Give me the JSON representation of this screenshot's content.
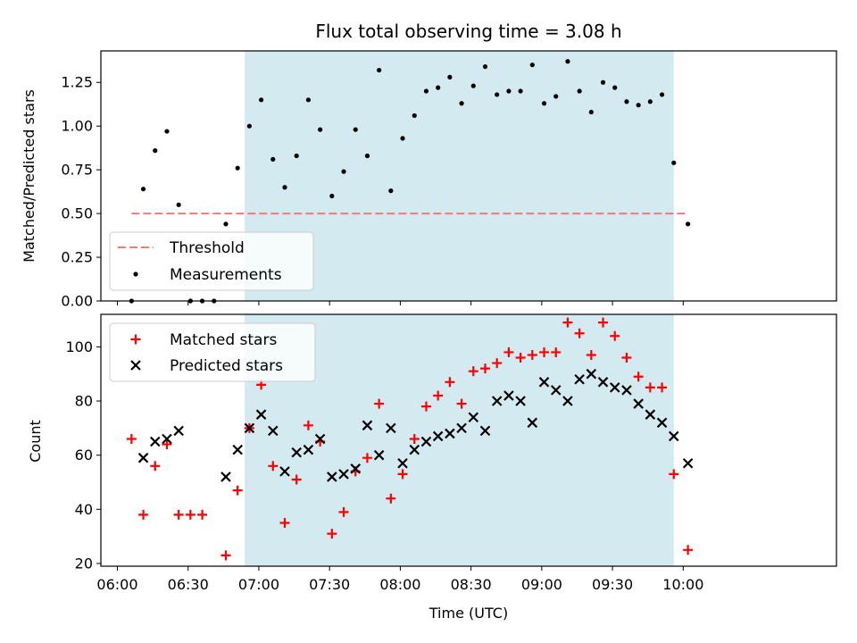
{
  "chart_data": [
    {
      "type": "scatter",
      "panel": "top",
      "title": "Flux total observing time = 3.08 h",
      "xlabel": "",
      "ylabel": "Matched/Predicted stars",
      "ylim": [
        0.0,
        1.43
      ],
      "yticks": [
        0.0,
        0.25,
        0.5,
        0.75,
        1.0,
        1.25
      ],
      "ytick_labels": [
        "0.00",
        "0.25",
        "0.50",
        "0.75",
        "1.00",
        "1.25"
      ],
      "x_unit": "minutes since 06:00 UTC",
      "xlim": [
        -7,
        305
      ],
      "shaded_interval": [
        "06:54",
        "09:56"
      ],
      "shade_color": "#d3eaf0",
      "threshold": {
        "name": "Threshold",
        "y": 0.5,
        "x": [
          "06:06",
          "10:02"
        ],
        "color": "#f07a7a"
      },
      "series": [
        {
          "name": "Measurements",
          "color": "#000000",
          "x": [
            "06:06",
            "06:11",
            "06:16",
            "06:21",
            "06:26",
            "06:31",
            "06:36",
            "06:41",
            "06:46",
            "06:51",
            "06:56",
            "07:01",
            "07:06",
            "07:11",
            "07:16",
            "07:21",
            "07:26",
            "07:31",
            "07:36",
            "07:41",
            "07:46",
            "07:51",
            "07:56",
            "08:01",
            "08:06",
            "08:11",
            "08:16",
            "08:21",
            "08:26",
            "08:31",
            "08:36",
            "08:41",
            "08:46",
            "08:51",
            "08:56",
            "09:01",
            "09:06",
            "09:11",
            "09:16",
            "09:21",
            "09:26",
            "09:31",
            "09:36",
            "09:41",
            "09:46",
            "09:51",
            "09:56",
            "10:02"
          ],
          "y": [
            0.0,
            0.64,
            0.86,
            0.97,
            0.55,
            0.0,
            0.0,
            0.0,
            0.44,
            0.76,
            1.0,
            1.15,
            0.81,
            0.65,
            0.83,
            1.15,
            0.98,
            0.6,
            0.74,
            0.98,
            0.83,
            1.32,
            0.63,
            0.93,
            1.06,
            1.2,
            1.22,
            1.28,
            1.13,
            1.23,
            1.34,
            1.18,
            1.2,
            1.2,
            1.35,
            1.13,
            1.17,
            1.37,
            1.2,
            1.08,
            1.25,
            1.22,
            1.14,
            1.12,
            1.14,
            1.18,
            0.79,
            0.44
          ]
        }
      ],
      "legend_position": "lower-left"
    },
    {
      "type": "scatter",
      "panel": "bottom",
      "title": "",
      "xlabel": "Time (UTC)",
      "ylabel": "Count",
      "ylim": [
        19,
        112
      ],
      "yticks": [
        20,
        40,
        60,
        80,
        100
      ],
      "ytick_labels": [
        "20",
        "40",
        "60",
        "80",
        "100"
      ],
      "xticks": [
        "06:00",
        "06:30",
        "07:00",
        "07:30",
        "08:00",
        "08:30",
        "09:00",
        "09:30",
        "10:00"
      ],
      "shaded_interval": [
        "06:54",
        "09:56"
      ],
      "series": [
        {
          "name": "Matched stars",
          "marker": "+",
          "color": "#ff0000",
          "x": [
            "06:06",
            "06:11",
            "06:16",
            "06:21",
            "06:26",
            "06:31",
            "06:36",
            "06:46",
            "06:51",
            "06:56",
            "07:01",
            "07:06",
            "07:11",
            "07:16",
            "07:21",
            "07:26",
            "07:31",
            "07:36",
            "07:41",
            "07:46",
            "07:51",
            "07:56",
            "08:01",
            "08:06",
            "08:11",
            "08:16",
            "08:21",
            "08:26",
            "08:31",
            "08:36",
            "08:41",
            "08:46",
            "08:51",
            "08:56",
            "09:01",
            "09:06",
            "09:11",
            "09:16",
            "09:21",
            "09:26",
            "09:31",
            "09:36",
            "09:41",
            "09:46",
            "09:51",
            "09:56",
            "10:02"
          ],
          "y": [
            66,
            38,
            56,
            64,
            38,
            38,
            38,
            23,
            47,
            70,
            86,
            56,
            35,
            51,
            71,
            65,
            31,
            39,
            54,
            59,
            79,
            44,
            53,
            66,
            78,
            82,
            87,
            79,
            91,
            92,
            94,
            98,
            96,
            97,
            98,
            98,
            109,
            105,
            97,
            109,
            104,
            96,
            89,
            85,
            85,
            53,
            25
          ]
        },
        {
          "name": "Predicted stars",
          "marker": "x",
          "color": "#000000",
          "x": [
            "06:11",
            "06:16",
            "06:21",
            "06:26",
            "06:46",
            "06:51",
            "06:56",
            "07:01",
            "07:06",
            "07:11",
            "07:16",
            "07:21",
            "07:26",
            "07:31",
            "07:36",
            "07:41",
            "07:46",
            "07:51",
            "07:56",
            "08:01",
            "08:06",
            "08:11",
            "08:16",
            "08:21",
            "08:26",
            "08:31",
            "08:36",
            "08:41",
            "08:46",
            "08:51",
            "08:56",
            "09:01",
            "09:06",
            "09:11",
            "09:16",
            "09:21",
            "09:26",
            "09:31",
            "09:36",
            "09:41",
            "09:46",
            "09:51",
            "09:56",
            "10:02"
          ],
          "y": [
            59,
            65,
            66,
            69,
            52,
            62,
            70,
            75,
            69,
            54,
            61,
            62,
            66,
            52,
            53,
            55,
            71,
            60,
            70,
            57,
            62,
            65,
            67,
            68,
            70,
            74,
            69,
            80,
            82,
            80,
            72,
            87,
            84,
            80,
            88,
            90,
            87,
            85,
            84,
            79,
            75,
            72,
            67,
            57
          ]
        }
      ],
      "legend_position": "upper-left"
    }
  ]
}
